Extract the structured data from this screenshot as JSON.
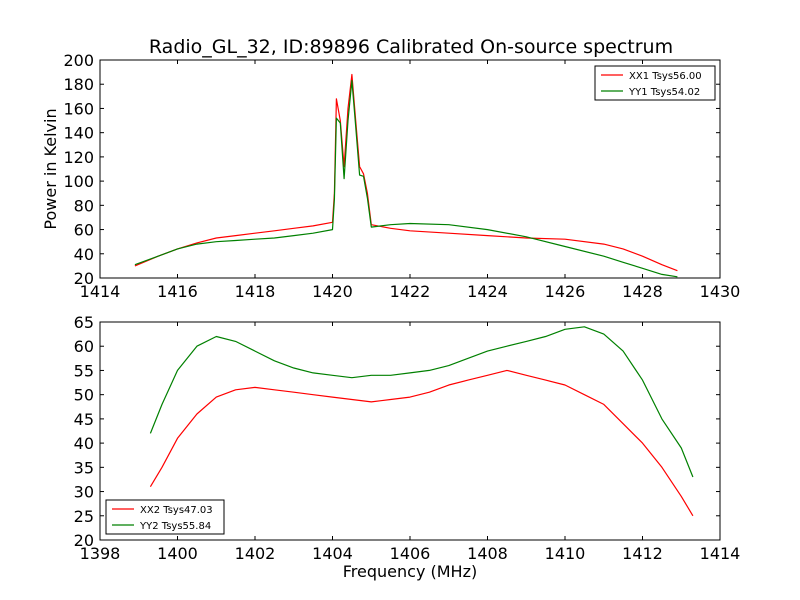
{
  "figure": {
    "title": "Radio_GL_32, ID:89896 Calibrated On-source spectrum",
    "colors": {
      "red": "#ff0000",
      "green": "#008000",
      "frame": "#000000"
    }
  },
  "chart_data": [
    {
      "type": "line",
      "title": "Radio_GL_32, ID:89896 Calibrated On-source spectrum",
      "xlabel": "",
      "ylabel": "Power in Kelvin",
      "xlim": [
        1414,
        1430
      ],
      "ylim": [
        20,
        200
      ],
      "xticks": [
        1414,
        1416,
        1418,
        1420,
        1422,
        1424,
        1426,
        1428,
        1430
      ],
      "yticks": [
        20,
        40,
        60,
        80,
        100,
        120,
        140,
        160,
        180,
        200
      ],
      "legend_position": "top-right",
      "grid": false,
      "series": [
        {
          "name": "XX1 Tsys56.00",
          "color": "#ff0000",
          "x": [
            1414.9,
            1415.5,
            1416,
            1416.5,
            1417,
            1417.5,
            1418,
            1418.5,
            1419,
            1419.5,
            1420.0,
            1420.05,
            1420.1,
            1420.2,
            1420.3,
            1420.4,
            1420.5,
            1420.6,
            1420.7,
            1420.8,
            1420.9,
            1421.0,
            1421.5,
            1422,
            1423,
            1424,
            1425,
            1426,
            1427,
            1427.5,
            1428,
            1428.5,
            1428.9
          ],
          "y": [
            30,
            38,
            44,
            49,
            53,
            55,
            57,
            59,
            61,
            63,
            66,
            90,
            168,
            150,
            112,
            160,
            188,
            150,
            112,
            106,
            90,
            64,
            61,
            59,
            57,
            55,
            53,
            52,
            48,
            44,
            38,
            31,
            26
          ]
        },
        {
          "name": "YY1 Tsys54.02",
          "color": "#008000",
          "x": [
            1414.9,
            1415.5,
            1416,
            1416.5,
            1417,
            1417.5,
            1418,
            1418.5,
            1419,
            1419.5,
            1420.0,
            1420.05,
            1420.1,
            1420.2,
            1420.3,
            1420.4,
            1420.5,
            1420.6,
            1420.7,
            1420.8,
            1420.9,
            1421.0,
            1421.5,
            1422,
            1423,
            1424,
            1425,
            1426,
            1427,
            1427.5,
            1428,
            1428.5,
            1428.9
          ],
          "y": [
            31,
            38,
            44,
            48,
            50,
            51,
            52,
            53,
            55,
            57,
            60,
            85,
            152,
            148,
            102,
            150,
            183,
            145,
            105,
            104,
            86,
            62,
            64,
            65,
            64,
            60,
            54,
            46,
            38,
            33,
            28,
            23,
            21
          ]
        }
      ]
    },
    {
      "type": "line",
      "title": "",
      "xlabel": "Frequency (MHz)",
      "ylabel": "",
      "xlim": [
        1398,
        1414
      ],
      "ylim": [
        20,
        65
      ],
      "xticks": [
        1398,
        1400,
        1402,
        1404,
        1406,
        1408,
        1410,
        1412,
        1414
      ],
      "yticks": [
        20,
        25,
        30,
        35,
        40,
        45,
        50,
        55,
        60,
        65
      ],
      "legend_position": "bottom-left",
      "grid": false,
      "series": [
        {
          "name": "XX2 Tsys47.03",
          "color": "#ff0000",
          "x": [
            1399.3,
            1399.6,
            1400,
            1400.5,
            1401,
            1401.5,
            1402,
            1402.5,
            1403,
            1403.5,
            1404,
            1404.5,
            1405,
            1405.5,
            1406,
            1406.5,
            1407,
            1407.5,
            1408,
            1408.5,
            1409,
            1409.5,
            1410,
            1410.5,
            1411,
            1411.5,
            1412,
            1412.5,
            1413,
            1413.3
          ],
          "y": [
            31,
            35,
            41,
            46,
            49.5,
            51,
            51.5,
            51,
            50.5,
            50,
            49.5,
            49,
            48.5,
            49,
            49.5,
            50.5,
            52,
            53,
            54,
            55,
            54,
            53,
            52,
            50,
            48,
            44,
            40,
            35,
            29,
            25
          ]
        },
        {
          "name": "YY2 Tsys55.84",
          "color": "#008000",
          "x": [
            1399.3,
            1399.6,
            1400,
            1400.5,
            1401,
            1401.5,
            1402,
            1402.5,
            1403,
            1403.5,
            1404,
            1404.5,
            1405,
            1405.5,
            1406,
            1406.5,
            1407,
            1407.5,
            1408,
            1408.5,
            1409,
            1409.5,
            1410,
            1410.5,
            1411,
            1411.5,
            1412,
            1412.5,
            1413,
            1413.3
          ],
          "y": [
            42,
            48,
            55,
            60,
            62,
            61,
            59,
            57,
            55.5,
            54.5,
            54,
            53.5,
            54,
            54,
            54.5,
            55,
            56,
            57.5,
            59,
            60,
            61,
            62,
            63.5,
            64,
            62.5,
            59,
            53,
            45,
            39,
            33
          ]
        }
      ]
    }
  ]
}
